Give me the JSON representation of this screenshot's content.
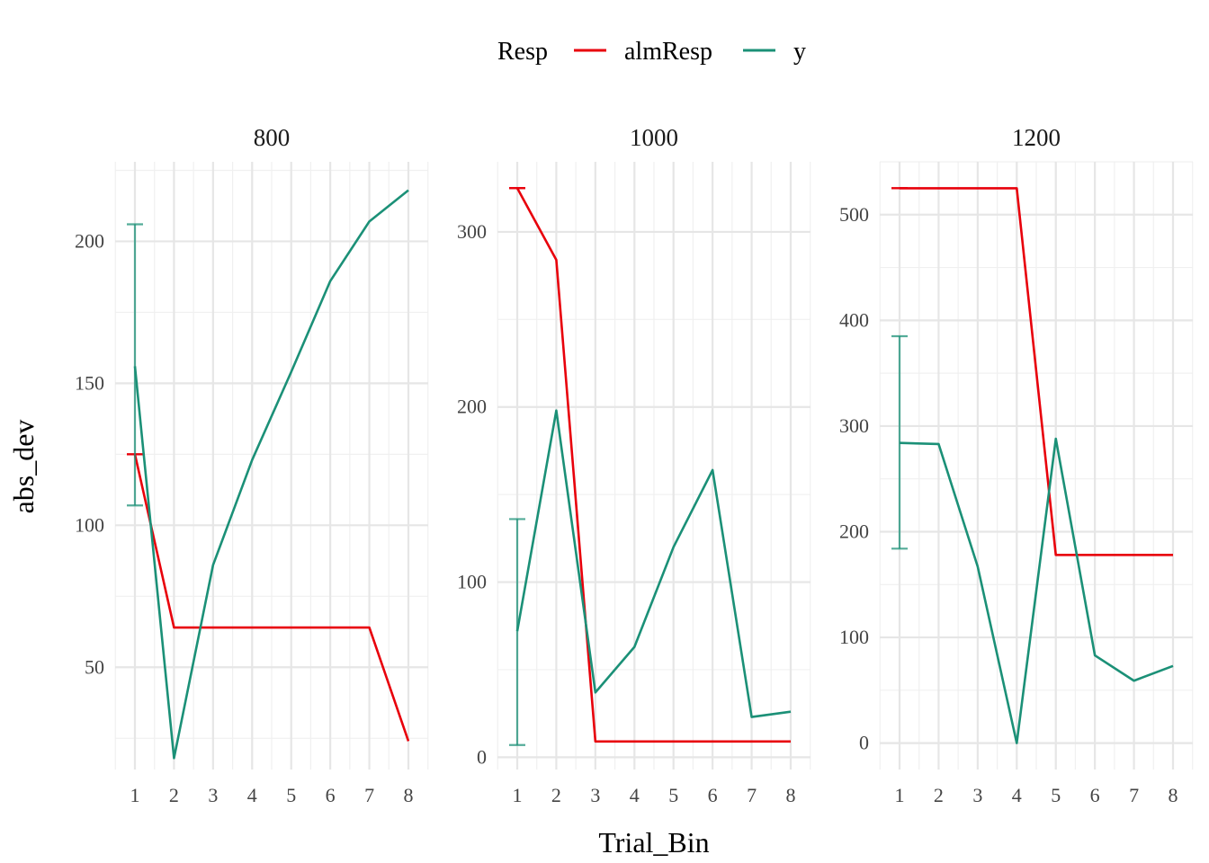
{
  "colors": {
    "almResp": "#e8000b",
    "y": "#1b9077"
  },
  "chart_data": {
    "type": "line",
    "facet_variable": "",
    "xlabel": "Trial_Bin",
    "ylabel": "abs_dev",
    "legend": {
      "title": "Resp",
      "position": "top",
      "entries": [
        "almResp",
        "y"
      ]
    },
    "grid": true,
    "x": [
      1,
      2,
      3,
      4,
      5,
      6,
      7,
      8
    ],
    "panels": [
      {
        "label": "800",
        "ylim": [
          14,
          228
        ],
        "yticks": [
          50,
          100,
          150,
          200
        ],
        "series": [
          {
            "name": "almResp",
            "values": [
              125,
              64,
              64,
              64,
              64,
              64,
              64,
              24
            ],
            "errorbar": {
              "x": 1,
              "low": 125,
              "high": 125
            }
          },
          {
            "name": "y",
            "values": [
              156,
              18,
              86,
              123,
              154,
              186,
              207,
              218
            ],
            "errorbar": {
              "x": 1,
              "low": 107,
              "high": 206
            }
          }
        ]
      },
      {
        "label": "1000",
        "ylim": [
          -7,
          340
        ],
        "yticks": [
          0,
          100,
          200,
          300
        ],
        "series": [
          {
            "name": "almResp",
            "values": [
              325,
              284,
              9,
              9,
              9,
              9,
              9,
              9
            ],
            "errorbar": {
              "x": 1,
              "low": 325,
              "high": 325
            }
          },
          {
            "name": "y",
            "values": [
              72,
              198,
              37,
              63,
              120,
              164,
              23,
              26
            ],
            "errorbar": {
              "x": 1,
              "low": 7,
              "high": 136
            }
          }
        ]
      },
      {
        "label": "1200",
        "ylim": [
          -25,
          550
        ],
        "yticks": [
          0,
          100,
          200,
          300,
          400,
          500
        ],
        "series": [
          {
            "name": "almResp",
            "values": [
              525,
              525,
              525,
              525,
              178,
              178,
              178,
              178
            ],
            "errorbar": {
              "x": 1,
              "low": 525,
              "high": 525
            }
          },
          {
            "name": "y",
            "values": [
              284,
              283,
              167,
              0,
              288,
              83,
              59,
              73
            ],
            "errorbar": {
              "x": 1,
              "low": 184,
              "high": 385
            }
          }
        ]
      }
    ]
  }
}
